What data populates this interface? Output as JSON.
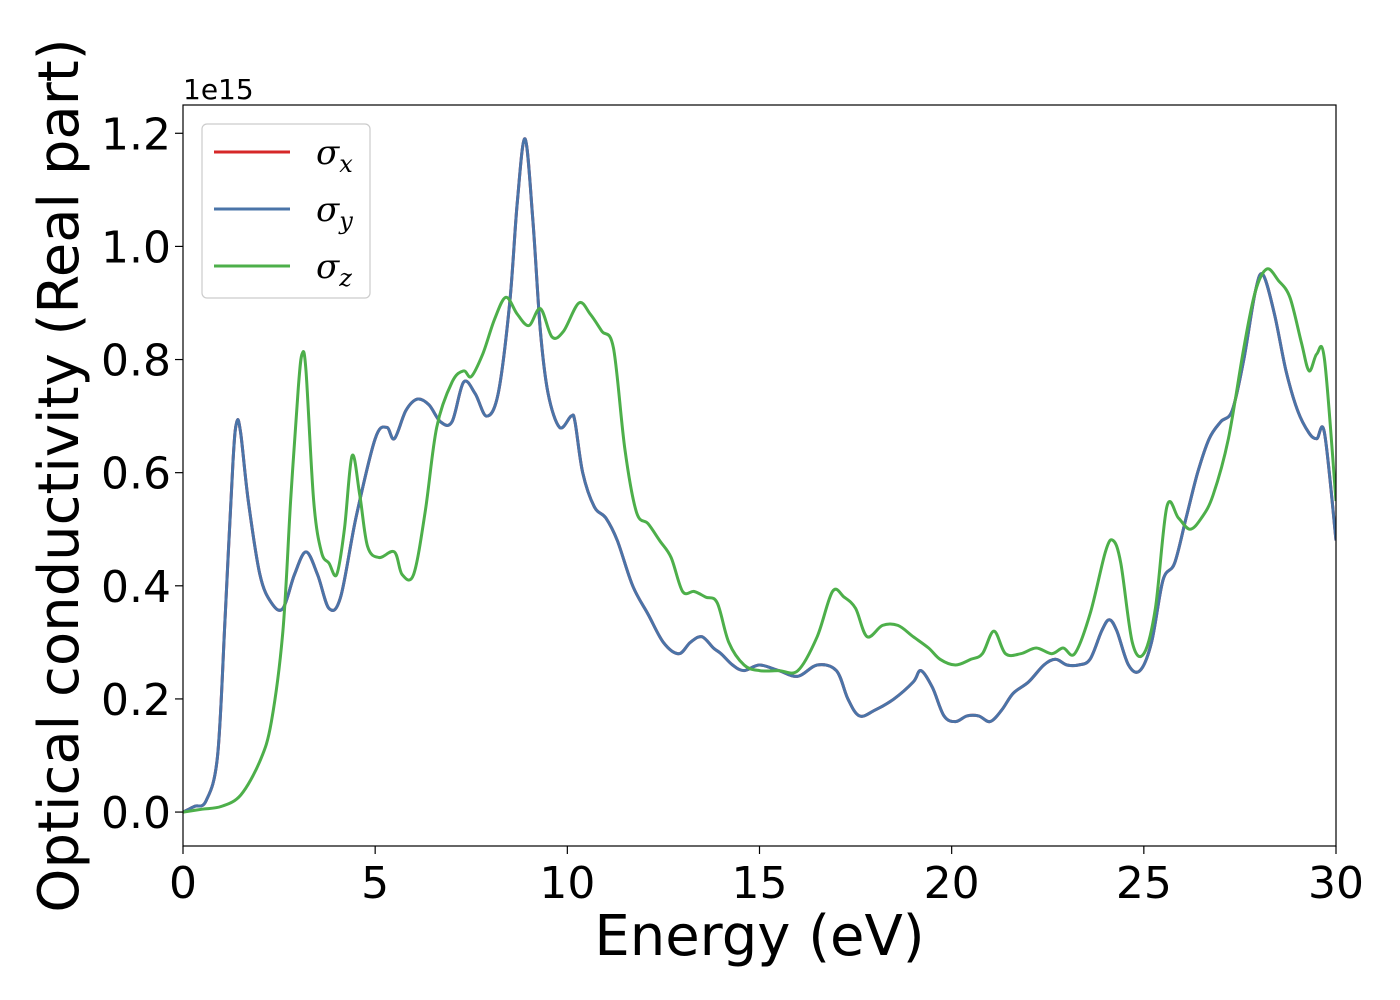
{
  "chart_data": {
    "type": "line",
    "title": "",
    "xlabel": "Energy (eV)",
    "ylabel": "Optical conductivity (Real part)",
    "y_offset_label": "1e15",
    "xlim": [
      0,
      30
    ],
    "ylim": [
      -0.06,
      1.25
    ],
    "x_ticks": [
      0,
      5,
      10,
      15,
      20,
      25,
      30
    ],
    "x_tick_labels": [
      "0",
      "5",
      "10",
      "15",
      "20",
      "25",
      "30"
    ],
    "y_ticks": [
      0.0,
      0.2,
      0.4,
      0.6,
      0.8,
      1.0,
      1.2
    ],
    "y_tick_labels": [
      "0.0",
      "0.2",
      "0.4",
      "0.6",
      "0.8",
      "1.0",
      "1.2"
    ],
    "grid": false,
    "legend_position": "top-left",
    "series": [
      {
        "name": "σx",
        "symbol": "σ",
        "subscript": "x",
        "color": "#d62728",
        "x": [
          0,
          0.3,
          0.6,
          0.9,
          1.1,
          1.3,
          1.4,
          1.5,
          1.7,
          2.0,
          2.3,
          2.6,
          2.9,
          3.2,
          3.5,
          3.8,
          4.1,
          4.5,
          5.0,
          5.3,
          5.5,
          5.8,
          6.1,
          6.4,
          6.7,
          7.0,
          7.3,
          7.6,
          7.9,
          8.2,
          8.5,
          8.7,
          8.9,
          9.1,
          9.3,
          9.5,
          9.8,
          10.1,
          10.2,
          10.4,
          10.7,
          11.0,
          11.3,
          11.7,
          12.1,
          12.5,
          12.9,
          13.2,
          13.5,
          13.8,
          14.0,
          14.3,
          14.6,
          15.0,
          15.5,
          16.0,
          16.5,
          17.0,
          17.3,
          17.6,
          18.0,
          18.5,
          19.0,
          19.2,
          19.5,
          19.8,
          20.1,
          20.4,
          20.7,
          21.0,
          21.3,
          21.6,
          22.0,
          22.4,
          22.7,
          23.0,
          23.3,
          23.6,
          23.9,
          24.1,
          24.3,
          24.6,
          24.9,
          25.2,
          25.5,
          25.8,
          26.1,
          26.4,
          26.7,
          27.0,
          27.3,
          27.6,
          27.9,
          28.1,
          28.4,
          28.7,
          29.0,
          29.3,
          29.5,
          29.7,
          30.0
        ],
        "y": [
          0.0,
          0.01,
          0.02,
          0.1,
          0.35,
          0.62,
          0.69,
          0.67,
          0.55,
          0.42,
          0.37,
          0.36,
          0.42,
          0.46,
          0.42,
          0.36,
          0.38,
          0.52,
          0.66,
          0.68,
          0.66,
          0.71,
          0.73,
          0.72,
          0.69,
          0.69,
          0.76,
          0.74,
          0.7,
          0.74,
          0.9,
          1.08,
          1.19,
          1.05,
          0.85,
          0.74,
          0.68,
          0.7,
          0.69,
          0.6,
          0.54,
          0.52,
          0.48,
          0.4,
          0.35,
          0.3,
          0.28,
          0.3,
          0.31,
          0.29,
          0.28,
          0.26,
          0.25,
          0.26,
          0.25,
          0.24,
          0.26,
          0.25,
          0.2,
          0.17,
          0.18,
          0.2,
          0.23,
          0.25,
          0.22,
          0.17,
          0.16,
          0.17,
          0.17,
          0.16,
          0.18,
          0.21,
          0.23,
          0.26,
          0.27,
          0.26,
          0.26,
          0.27,
          0.32,
          0.34,
          0.32,
          0.26,
          0.25,
          0.3,
          0.41,
          0.44,
          0.52,
          0.6,
          0.66,
          0.69,
          0.71,
          0.8,
          0.92,
          0.95,
          0.88,
          0.78,
          0.71,
          0.67,
          0.66,
          0.67,
          0.48
        ]
      },
      {
        "name": "σy",
        "symbol": "σ",
        "subscript": "y",
        "color": "#4a74a8",
        "x": [
          0,
          0.3,
          0.6,
          0.9,
          1.1,
          1.3,
          1.4,
          1.5,
          1.7,
          2.0,
          2.3,
          2.6,
          2.9,
          3.2,
          3.5,
          3.8,
          4.1,
          4.5,
          5.0,
          5.3,
          5.5,
          5.8,
          6.1,
          6.4,
          6.7,
          7.0,
          7.3,
          7.6,
          7.9,
          8.2,
          8.5,
          8.7,
          8.9,
          9.1,
          9.3,
          9.5,
          9.8,
          10.1,
          10.2,
          10.4,
          10.7,
          11.0,
          11.3,
          11.7,
          12.1,
          12.5,
          12.9,
          13.2,
          13.5,
          13.8,
          14.0,
          14.3,
          14.6,
          15.0,
          15.5,
          16.0,
          16.5,
          17.0,
          17.3,
          17.6,
          18.0,
          18.5,
          19.0,
          19.2,
          19.5,
          19.8,
          20.1,
          20.4,
          20.7,
          21.0,
          21.3,
          21.6,
          22.0,
          22.4,
          22.7,
          23.0,
          23.3,
          23.6,
          23.9,
          24.1,
          24.3,
          24.6,
          24.9,
          25.2,
          25.5,
          25.8,
          26.1,
          26.4,
          26.7,
          27.0,
          27.3,
          27.6,
          27.9,
          28.1,
          28.4,
          28.7,
          29.0,
          29.3,
          29.5,
          29.7,
          30.0
        ],
        "y": [
          0.0,
          0.01,
          0.02,
          0.1,
          0.35,
          0.62,
          0.69,
          0.67,
          0.55,
          0.42,
          0.37,
          0.36,
          0.42,
          0.46,
          0.42,
          0.36,
          0.38,
          0.52,
          0.66,
          0.68,
          0.66,
          0.71,
          0.73,
          0.72,
          0.69,
          0.69,
          0.76,
          0.74,
          0.7,
          0.74,
          0.9,
          1.08,
          1.19,
          1.05,
          0.85,
          0.74,
          0.68,
          0.7,
          0.69,
          0.6,
          0.54,
          0.52,
          0.48,
          0.4,
          0.35,
          0.3,
          0.28,
          0.3,
          0.31,
          0.29,
          0.28,
          0.26,
          0.25,
          0.26,
          0.25,
          0.24,
          0.26,
          0.25,
          0.2,
          0.17,
          0.18,
          0.2,
          0.23,
          0.25,
          0.22,
          0.17,
          0.16,
          0.17,
          0.17,
          0.16,
          0.18,
          0.21,
          0.23,
          0.26,
          0.27,
          0.26,
          0.26,
          0.27,
          0.32,
          0.34,
          0.32,
          0.26,
          0.25,
          0.3,
          0.41,
          0.44,
          0.52,
          0.6,
          0.66,
          0.69,
          0.71,
          0.8,
          0.92,
          0.95,
          0.88,
          0.78,
          0.71,
          0.67,
          0.66,
          0.67,
          0.48
        ]
      },
      {
        "name": "σz",
        "symbol": "σ",
        "subscript": "z",
        "color": "#4daf4a",
        "x": [
          0,
          0.5,
          1.0,
          1.5,
          2.0,
          2.3,
          2.6,
          2.8,
          3.0,
          3.1,
          3.2,
          3.4,
          3.6,
          3.8,
          4.0,
          4.2,
          4.4,
          4.6,
          4.8,
          5.1,
          5.5,
          5.7,
          6.0,
          6.3,
          6.6,
          7.0,
          7.3,
          7.5,
          7.8,
          8.1,
          8.4,
          8.7,
          9.0,
          9.3,
          9.6,
          9.9,
          10.3,
          10.6,
          10.9,
          11.2,
          11.5,
          11.8,
          12.1,
          12.4,
          12.7,
          13.0,
          13.3,
          13.6,
          13.9,
          14.2,
          14.6,
          15.0,
          15.5,
          16.0,
          16.5,
          16.9,
          17.2,
          17.5,
          17.8,
          18.2,
          18.6,
          19.0,
          19.4,
          19.7,
          20.1,
          20.5,
          20.8,
          21.1,
          21.4,
          21.8,
          22.2,
          22.6,
          22.9,
          23.2,
          23.6,
          24.0,
          24.2,
          24.4,
          24.7,
          25.0,
          25.3,
          25.6,
          25.9,
          26.2,
          26.5,
          26.8,
          27.2,
          27.6,
          27.9,
          28.2,
          28.5,
          28.8,
          29.1,
          29.3,
          29.5,
          29.7,
          30.0
        ],
        "y": [
          0.0,
          0.005,
          0.01,
          0.03,
          0.09,
          0.16,
          0.32,
          0.55,
          0.75,
          0.81,
          0.78,
          0.55,
          0.46,
          0.44,
          0.42,
          0.5,
          0.63,
          0.56,
          0.47,
          0.45,
          0.46,
          0.42,
          0.42,
          0.53,
          0.68,
          0.76,
          0.78,
          0.77,
          0.81,
          0.87,
          0.91,
          0.88,
          0.86,
          0.89,
          0.84,
          0.85,
          0.9,
          0.88,
          0.85,
          0.82,
          0.64,
          0.53,
          0.51,
          0.48,
          0.45,
          0.39,
          0.39,
          0.38,
          0.37,
          0.3,
          0.26,
          0.25,
          0.25,
          0.25,
          0.31,
          0.39,
          0.38,
          0.36,
          0.31,
          0.33,
          0.33,
          0.31,
          0.29,
          0.27,
          0.26,
          0.27,
          0.28,
          0.32,
          0.28,
          0.28,
          0.29,
          0.28,
          0.29,
          0.28,
          0.35,
          0.46,
          0.48,
          0.44,
          0.3,
          0.28,
          0.36,
          0.54,
          0.52,
          0.5,
          0.52,
          0.56,
          0.66,
          0.82,
          0.92,
          0.96,
          0.94,
          0.91,
          0.83,
          0.78,
          0.81,
          0.8,
          0.55
        ]
      }
    ]
  }
}
